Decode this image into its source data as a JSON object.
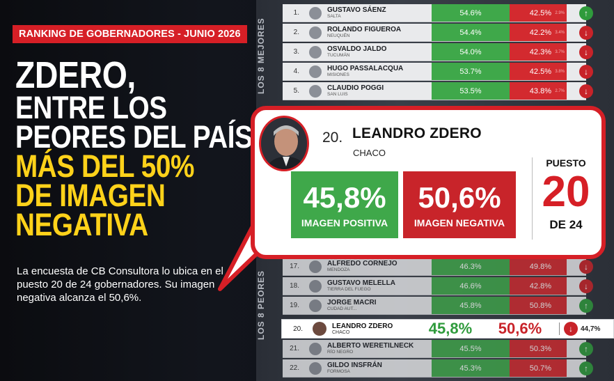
{
  "tag": "RANKING DE GOBERNADORES - JUNIO 2026",
  "headline": {
    "line1": "ZDERO,",
    "line2": "ENTRE LOS",
    "line3": "PEORES DEL PAÍS:",
    "line4": "MÁS DEL 50%",
    "line5": "DE IMAGEN",
    "line6": "NEGATIVA"
  },
  "description": "La encuesta de CB Consultora lo ubica en el puesto 20 de 24 gobernadores. Su imagen negativa alcanza el 50,6%.",
  "labels": {
    "best": "LOS 8 MEJORES",
    "worst": "LOS 8 PEORES"
  },
  "top_rows": [
    {
      "rank": "1.",
      "name": "GUSTAVO SÁENZ",
      "province": "SALTA",
      "pos": "54.6%",
      "neg": "42.5%",
      "ns": "2.9%",
      "trend": "up"
    },
    {
      "rank": "2.",
      "name": "ROLANDO FIGUEROA",
      "province": "NEUQUÉN",
      "pos": "54.4%",
      "neg": "42.2%",
      "ns": "3.4%",
      "trend": "down"
    },
    {
      "rank": "3.",
      "name": "OSVALDO JALDO",
      "province": "TUCUMÁN",
      "pos": "54.0%",
      "neg": "42.3%",
      "ns": "3.7%",
      "trend": "down"
    },
    {
      "rank": "4.",
      "name": "HUGO PASSALACQUA",
      "province": "MISIONES",
      "pos": "53.7%",
      "neg": "42.5%",
      "ns": "3.8%",
      "trend": "down"
    },
    {
      "rank": "5.",
      "name": "CLAUDIO POGGI",
      "province": "SAN LUIS",
      "pos": "53.5%",
      "neg": "43.8%",
      "ns": "2.7%",
      "trend": "down"
    }
  ],
  "bottom_rows": [
    {
      "rank": "17.",
      "name": "ALFREDO CORNEJO",
      "province": "MENDOZA",
      "pos": "46.3%",
      "neg": "49.8%",
      "ns": "",
      "trend": "down"
    },
    {
      "rank": "18.",
      "name": "GUSTAVO MELELLA",
      "province": "TIERRA DEL FUEGO",
      "pos": "46.6%",
      "neg": "42.8%",
      "ns": "",
      "trend": "down"
    },
    {
      "rank": "19.",
      "name": "JORGE MACRI",
      "province": "CUDAD AUT...",
      "pos": "45.8%",
      "neg": "50.8%",
      "ns": "",
      "trend": "up"
    },
    {
      "rank": "21.",
      "name": "ALBERTO WERETILNECK",
      "province": "RÍO NEGRO",
      "pos": "45.5%",
      "neg": "50.3%",
      "ns": "",
      "trend": "up"
    },
    {
      "rank": "22.",
      "name": "GILDO INSFRÁN",
      "province": "FORMOSA",
      "pos": "45.3%",
      "neg": "50.7%",
      "ns": "",
      "trend": "up"
    }
  ],
  "highlight_row": {
    "rank": "20.",
    "name": "LEANDRO ZDERO",
    "province": "CHACO",
    "pos": "45,8%",
    "neg": "50,6%",
    "score": "44,7%",
    "trend": "down"
  },
  "bubble": {
    "rank": "20.",
    "name": "LEANDRO ZDERO",
    "province": "CHACO",
    "positive_value": "45,8%",
    "positive_label": "IMAGEN POSITIVA",
    "negative_value": "50,6%",
    "negative_label": "IMAGEN NEGATIVA",
    "puesto_label": "PUESTO",
    "puesto_value": "20",
    "puesto_of": "DE 24"
  },
  "colors": {
    "accent_red": "#d61f26",
    "positive_green": "#3fa84a",
    "headline_yellow": "#ffd21a"
  }
}
